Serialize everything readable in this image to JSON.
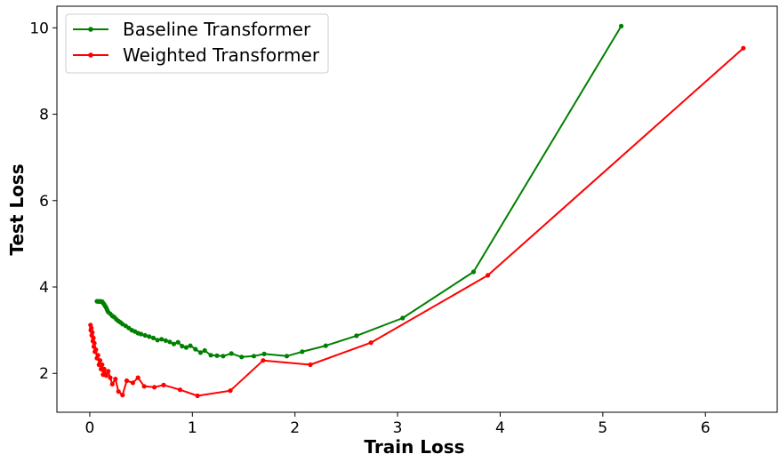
{
  "chart_data": {
    "type": "line",
    "title": "",
    "xlabel": "Train Loss",
    "ylabel": "Test Loss",
    "xlim": [
      -0.32,
      6.7
    ],
    "ylim": [
      1.1,
      10.5
    ],
    "xticks": [
      0,
      1,
      2,
      3,
      4,
      5,
      6
    ],
    "yticks": [
      2,
      4,
      6,
      8,
      10
    ],
    "legend_position": "top-left",
    "grid": false,
    "series": [
      {
        "name": "Baseline Transformer",
        "color": "#008000",
        "marker": "circle",
        "points": [
          [
            5.18,
            10.04
          ],
          [
            3.74,
            4.35
          ],
          [
            3.05,
            3.28
          ],
          [
            2.6,
            2.87
          ],
          [
            2.3,
            2.64
          ],
          [
            2.07,
            2.5
          ],
          [
            1.92,
            2.4
          ],
          [
            1.7,
            2.45
          ],
          [
            1.6,
            2.4
          ],
          [
            1.48,
            2.38
          ],
          [
            1.38,
            2.46
          ],
          [
            1.3,
            2.4
          ],
          [
            1.24,
            2.41
          ],
          [
            1.18,
            2.42
          ],
          [
            1.12,
            2.53
          ],
          [
            1.08,
            2.48
          ],
          [
            1.03,
            2.56
          ],
          [
            0.98,
            2.64
          ],
          [
            0.94,
            2.6
          ],
          [
            0.9,
            2.63
          ],
          [
            0.86,
            2.72
          ],
          [
            0.82,
            2.68
          ],
          [
            0.78,
            2.73
          ],
          [
            0.74,
            2.76
          ],
          [
            0.7,
            2.79
          ],
          [
            0.66,
            2.77
          ],
          [
            0.62,
            2.82
          ],
          [
            0.58,
            2.85
          ],
          [
            0.54,
            2.88
          ],
          [
            0.5,
            2.91
          ],
          [
            0.47,
            2.93
          ],
          [
            0.44,
            2.97
          ],
          [
            0.41,
            3.0
          ],
          [
            0.38,
            3.05
          ],
          [
            0.35,
            3.1
          ],
          [
            0.32,
            3.14
          ],
          [
            0.3,
            3.18
          ],
          [
            0.28,
            3.21
          ],
          [
            0.26,
            3.25
          ],
          [
            0.24,
            3.3
          ],
          [
            0.22,
            3.33
          ],
          [
            0.2,
            3.38
          ],
          [
            0.18,
            3.42
          ],
          [
            0.17,
            3.47
          ],
          [
            0.16,
            3.52
          ],
          [
            0.15,
            3.56
          ],
          [
            0.14,
            3.6
          ],
          [
            0.13,
            3.63
          ],
          [
            0.12,
            3.66
          ],
          [
            0.11,
            3.66
          ],
          [
            0.1,
            3.67
          ],
          [
            0.09,
            3.66
          ],
          [
            0.08,
            3.67
          ],
          [
            0.07,
            3.67
          ]
        ]
      },
      {
        "name": "Weighted Transformer",
        "color": "#ff0000",
        "marker": "circle",
        "points": [
          [
            6.37,
            9.53
          ],
          [
            3.88,
            4.27
          ],
          [
            2.74,
            2.71
          ],
          [
            2.15,
            2.2
          ],
          [
            1.69,
            2.3
          ],
          [
            1.37,
            1.6
          ],
          [
            1.05,
            1.48
          ],
          [
            0.88,
            1.62
          ],
          [
            0.72,
            1.73
          ],
          [
            0.63,
            1.68
          ],
          [
            0.53,
            1.7
          ],
          [
            0.47,
            1.9
          ],
          [
            0.42,
            1.78
          ],
          [
            0.36,
            1.83
          ],
          [
            0.32,
            1.5
          ],
          [
            0.28,
            1.58
          ],
          [
            0.25,
            1.87
          ],
          [
            0.22,
            1.75
          ],
          [
            0.2,
            1.9
          ],
          [
            0.18,
            2.05
          ],
          [
            0.16,
            1.95
          ],
          [
            0.14,
            2.1
          ],
          [
            0.13,
            1.97
          ],
          [
            0.12,
            2.2
          ],
          [
            0.11,
            2.1
          ],
          [
            0.1,
            2.3
          ],
          [
            0.09,
            2.2
          ],
          [
            0.08,
            2.42
          ],
          [
            0.07,
            2.35
          ],
          [
            0.06,
            2.55
          ],
          [
            0.05,
            2.5
          ],
          [
            0.045,
            2.7
          ],
          [
            0.04,
            2.62
          ],
          [
            0.035,
            2.82
          ],
          [
            0.03,
            2.75
          ],
          [
            0.025,
            2.95
          ],
          [
            0.02,
            2.88
          ],
          [
            0.015,
            3.05
          ],
          [
            0.01,
            3.0
          ],
          [
            0.008,
            3.12
          ]
        ]
      }
    ]
  }
}
